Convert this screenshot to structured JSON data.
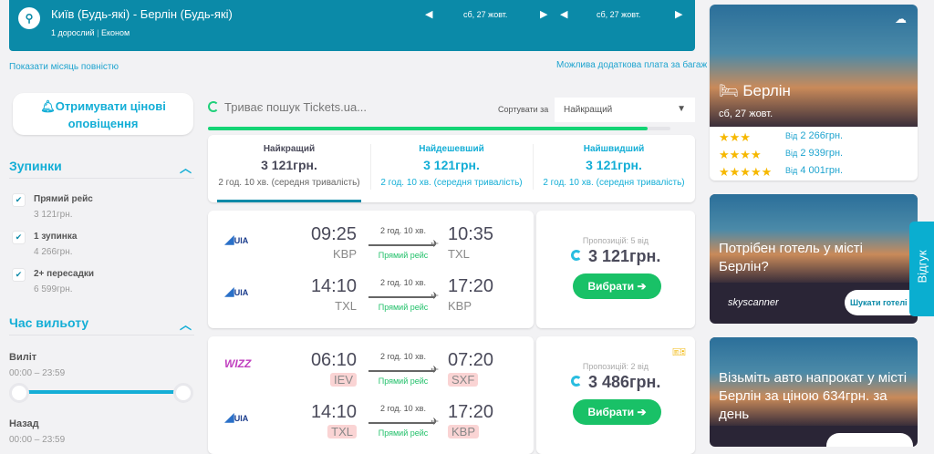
{
  "header": {
    "route": "Київ (Будь-які) - Берлін (Будь-які)",
    "passengers": "1 дорослий",
    "cabin": "Економ",
    "depart_date": "сб, 27 жовт.",
    "return_date": "сб, 27 жовт."
  },
  "links": {
    "show_month": "Показати місяць повністю",
    "baggage": "Можлива додаткова плата за багаж"
  },
  "alerts_button": "Отримувати цінові оповіщення",
  "search_status": "Триває пошук Tickets.ua...",
  "search_progress": 0.95,
  "sort": {
    "label": "Сортувати за",
    "value": "Найкращий"
  },
  "filters": {
    "stops_title": "Зупинки",
    "stops": [
      {
        "label": "Прямий рейс",
        "price": "3 121грн.",
        "checked": true
      },
      {
        "label": "1 зупинка",
        "price": "4 266грн.",
        "checked": true
      },
      {
        "label": "2+ пересадки",
        "price": "6 599грн.",
        "checked": true
      }
    ],
    "time_title": "Час вильоту",
    "departure_label": "Виліт",
    "departure_range": "00:00 – 23:59",
    "return_label": "Назад",
    "return_range": "00:00 – 23:59"
  },
  "tabs": [
    {
      "title": "Найкращий",
      "price": "3 121грн.",
      "duration": "2 год. 10 хв. (середня тривалість)",
      "active": true
    },
    {
      "title": "Найдешевший",
      "price": "3 121грн.",
      "duration": "2 год. 10 хв. (середня тривалість)"
    },
    {
      "title": "Найшвидший",
      "price": "3 121грн.",
      "duration": "2 год. 10 хв. (середня тривалість)"
    }
  ],
  "results": [
    {
      "legs": [
        {
          "airline": "UIA",
          "dep": "09:25",
          "dep_ap": "KBP",
          "arr": "10:35",
          "arr_ap": "TXL",
          "duration": "2 год. 10 хв.",
          "type": "Прямий рейс"
        },
        {
          "airline": "UIA",
          "dep": "14:10",
          "dep_ap": "TXL",
          "arr": "17:20",
          "arr_ap": "KBP",
          "duration": "2 год. 10 хв.",
          "type": "Прямий рейс"
        }
      ],
      "offers": "Пропозицій: 5 від",
      "price": "3 121грн.",
      "button": "Вибрати ➔"
    },
    {
      "legs": [
        {
          "airline": "WIZZ",
          "dep": "06:10",
          "dep_ap": "IEV",
          "arr": "07:20",
          "arr_ap": "SXF",
          "duration": "2 год. 10 хв.",
          "type": "Прямий рейс"
        },
        {
          "airline": "UIA",
          "dep": "14:10",
          "dep_ap": "TXL",
          "arr": "17:20",
          "arr_ap": "KBP",
          "duration": "2 год. 10 хв.",
          "type": "Прямий рейс"
        }
      ],
      "offers": "Пропозицій: 2 від",
      "price": "3 486грн.",
      "button": "Вибрати ➔"
    }
  ],
  "hotel_card": {
    "city": "Берлін",
    "date": "сб, 27 жовт.",
    "rows": [
      {
        "stars": 3,
        "from": "Від",
        "price": "2 266грн."
      },
      {
        "stars": 4,
        "from": "Від",
        "price": "2 939грн."
      },
      {
        "stars": 5,
        "from": "Від",
        "price": "4 001грн."
      }
    ]
  },
  "ad_hotel": {
    "text": "Потрібен готель у місті Берлін?",
    "brand": "skyscanner",
    "button": "Шукати готелі"
  },
  "ad_car": {
    "text": "Візьміть авто напрокат у місті Берлін за ціною 634грн. за день"
  },
  "feedback": "Відгук"
}
